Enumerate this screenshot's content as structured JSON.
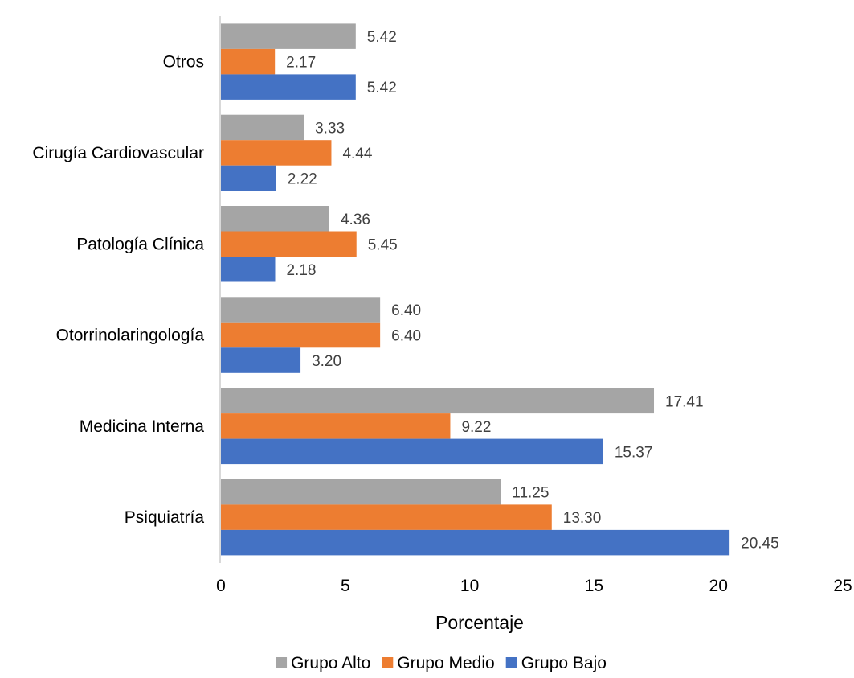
{
  "chart_data": {
    "type": "bar",
    "orientation": "horizontal",
    "categories": [
      "Psiquiatría",
      "Medicina Interna",
      "Otorrinolaringología",
      "Patología Clínica",
      "Cirugía Cardiovascular",
      "Otros"
    ],
    "series": [
      {
        "name": "Grupo Bajo",
        "color": "#4472C4",
        "values": [
          20.45,
          15.37,
          3.2,
          2.18,
          2.22,
          5.42
        ],
        "labels": [
          "20.45",
          "15.37",
          "3.20",
          "2.18",
          "2.22",
          "5.42"
        ]
      },
      {
        "name": "Grupo Medio",
        "color": "#ED7D31",
        "values": [
          13.3,
          9.22,
          6.4,
          5.45,
          4.44,
          2.17
        ],
        "labels": [
          "13.30",
          "9.22",
          "6.40",
          "5.45",
          "4.44",
          "2.17"
        ]
      },
      {
        "name": "Grupo Alto",
        "color": "#A5A5A5",
        "values": [
          11.25,
          17.41,
          6.4,
          4.36,
          3.33,
          5.42
        ],
        "labels": [
          "11.25",
          "17.41",
          "6.40",
          "4.36",
          "3.33",
          "5.42"
        ]
      }
    ],
    "xlabel": "Porcentaje",
    "ylabel": "",
    "xlim": [
      0,
      25
    ],
    "x_ticks": [
      "0",
      "5",
      "10",
      "15",
      "20",
      "25"
    ],
    "legend_order": [
      "Grupo Alto",
      "Grupo Medio",
      "Grupo Bajo"
    ],
    "legend_position": "bottom",
    "grid": false,
    "data_labels": true
  }
}
